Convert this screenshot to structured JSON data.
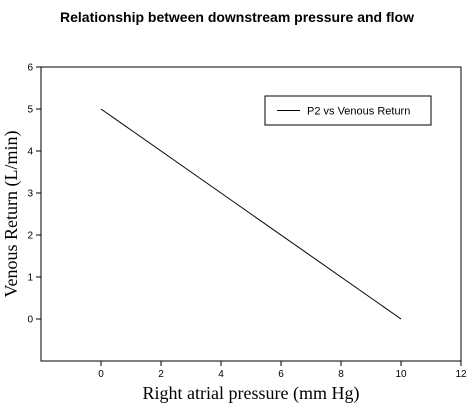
{
  "chart_data": {
    "type": "line",
    "title": "Relationship between downstream pressure and flow",
    "xlabel": "Right atrial pressure (mm Hg)",
    "ylabel": "Venous Return (L/min)",
    "xlim": [
      -2,
      12
    ],
    "ylim": [
      -1,
      6
    ],
    "xticks": [
      0,
      2,
      4,
      6,
      8,
      10,
      12
    ],
    "yticks": [
      0,
      1,
      2,
      3,
      4,
      5,
      6
    ],
    "grid": false,
    "legend_position": "top-right",
    "series": [
      {
        "name": "P2 vs Venous Return",
        "color": "#000000",
        "x": [
          0,
          10
        ],
        "y": [
          5,
          0
        ]
      }
    ]
  }
}
